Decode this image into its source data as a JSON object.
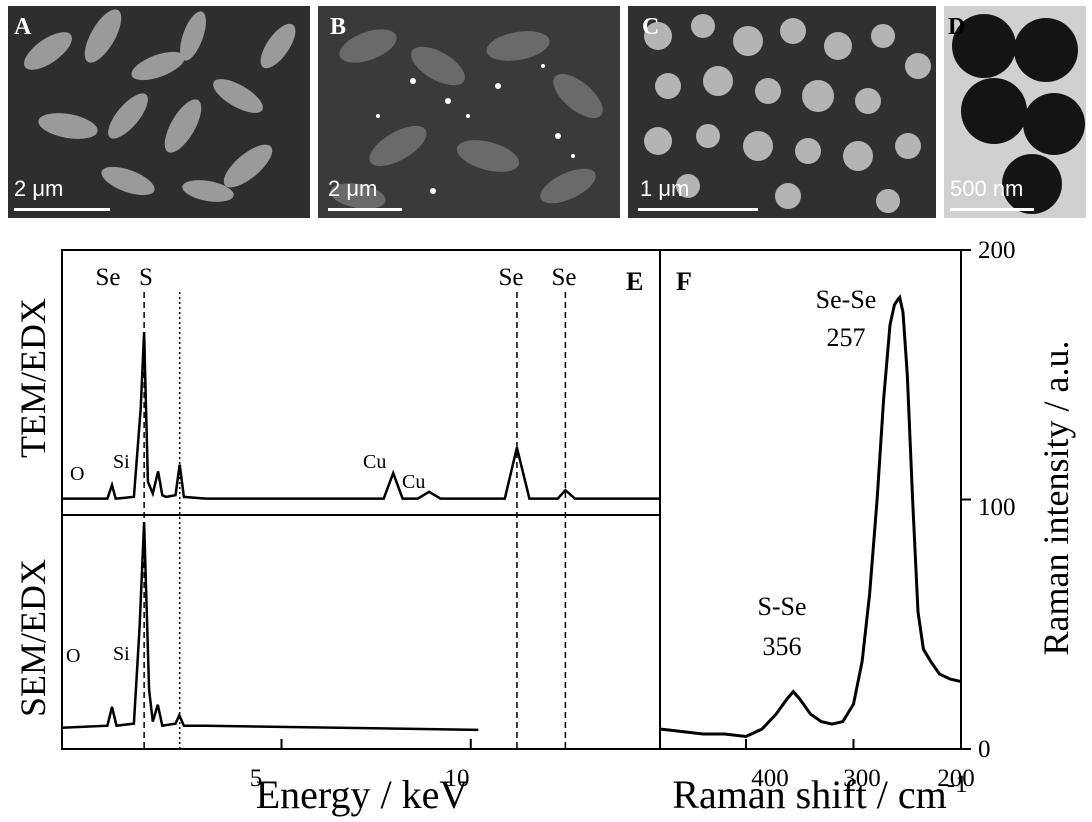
{
  "micrographs": [
    {
      "label": "A",
      "scale": "2 μm"
    },
    {
      "label": "B",
      "scale": "2 μm"
    },
    {
      "label": "C",
      "scale": "1 μm"
    },
    {
      "label": "D",
      "scale": "500 nm"
    }
  ],
  "colors": {
    "line": "#000000",
    "background": "#ffffff",
    "micrograph_text": "#ffffff"
  },
  "chart_data": [
    {
      "type": "line",
      "panel": "E",
      "xlabel": "Energy / keV",
      "x_ticks": [
        "5",
        "10"
      ],
      "xlim": [
        -0.8,
        15
      ],
      "grid": false,
      "subpanels": [
        {
          "name": "TEM/EDX",
          "series": [
            {
              "x": [
                -0.8,
                0.4,
                0.52,
                0.62,
                1.1,
                1.28,
                1.37,
                1.47,
                1.6,
                1.74,
                1.85,
                1.95,
                2.2,
                2.31,
                2.42,
                3.0,
                7.7,
                7.95,
                8.2,
                8.6,
                8.9,
                9.2,
                10.9,
                11.22,
                11.55,
                12.3,
                12.5,
                12.75,
                15.0
              ],
              "y": [
                0.02,
                0.02,
                0.1,
                0.02,
                0.03,
                0.55,
                1.0,
                0.12,
                0.05,
                0.18,
                0.04,
                0.03,
                0.04,
                0.22,
                0.03,
                0.02,
                0.02,
                0.17,
                0.02,
                0.02,
                0.06,
                0.02,
                0.02,
                0.32,
                0.02,
                0.02,
                0.07,
                0.02,
                0.02
              ]
            }
          ],
          "annotations": [
            "O",
            "Si",
            "Cu",
            "Cu"
          ]
        },
        {
          "name": "SEM/EDX",
          "series": [
            {
              "x": [
                -0.8,
                0.4,
                0.52,
                0.64,
                1.1,
                1.25,
                1.37,
                1.5,
                1.6,
                1.73,
                1.85,
                2.2,
                2.3,
                2.42,
                3.0,
                10.2
              ],
              "y": [
                0.02,
                0.03,
                0.12,
                0.03,
                0.04,
                0.5,
                1.0,
                0.2,
                0.05,
                0.13,
                0.03,
                0.04,
                0.08,
                0.03,
                0.03,
                0.01
              ]
            }
          ],
          "annotations": [
            "O",
            "Si"
          ]
        }
      ],
      "reference_lines": [
        {
          "label": "Se",
          "x": 1.37,
          "style": "dashed"
        },
        {
          "label": "S",
          "x": 2.31,
          "style": "dotted"
        },
        {
          "label": "Se",
          "x": 11.22,
          "style": "dashed"
        },
        {
          "label": "Se",
          "x": 12.5,
          "style": "dashed"
        }
      ]
    },
    {
      "type": "line",
      "panel": "F",
      "xlabel": "Raman shift / cm",
      "xlabel_sup": "-1",
      "ylabel": "Raman intensity / a.u.",
      "x_ticks": [
        "400",
        "300",
        "200"
      ],
      "y_ticks": [
        "0",
        "100",
        "200"
      ],
      "xlim": [
        480,
        200
      ],
      "ylim": [
        0,
        200
      ],
      "grid": false,
      "series": [
        {
          "x": [
            480,
            460,
            440,
            420,
            400,
            385,
            372,
            362,
            356,
            350,
            340,
            330,
            320,
            310,
            300,
            292,
            285,
            278,
            272,
            266,
            262,
            259,
            257,
            254,
            250,
            245,
            240,
            235,
            228,
            220,
            210,
            200
          ],
          "y": [
            8,
            7,
            6,
            6,
            5,
            8,
            14,
            20,
            23,
            20,
            14,
            11,
            10,
            11,
            18,
            35,
            62,
            100,
            140,
            170,
            178,
            180,
            181,
            175,
            150,
            100,
            55,
            40,
            35,
            30,
            28,
            27
          ]
        }
      ],
      "peaks": [
        {
          "name": "Se-Se",
          "value": "257"
        },
        {
          "name": "S-Se",
          "value": "356"
        }
      ]
    }
  ]
}
